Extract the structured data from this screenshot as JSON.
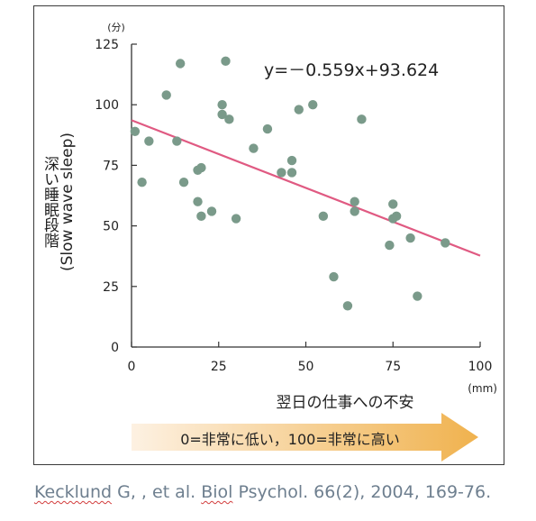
{
  "chart_data": {
    "type": "scatter",
    "title": "",
    "xlabel": "翌日の仕事への不安",
    "xunit": "(mm)",
    "ylabel_jp": "深い睡眠段階",
    "ylabel_en": "(Slow wave sleep)",
    "yunit": "(分)",
    "xlim": [
      0,
      100
    ],
    "ylim": [
      0,
      125
    ],
    "xticks": [
      "0",
      "25",
      "50",
      "75",
      "100"
    ],
    "yticks": [
      "0",
      "25",
      "50",
      "75",
      "100",
      "125"
    ],
    "grid": false,
    "equation": "y=－0.559x+93.624",
    "regression": {
      "slope": -0.559,
      "intercept": 93.624,
      "x_range": [
        0,
        100
      ]
    },
    "points": [
      [
        1,
        89
      ],
      [
        3,
        68
      ],
      [
        5,
        85
      ],
      [
        10,
        104
      ],
      [
        13,
        85
      ],
      [
        14,
        117
      ],
      [
        15,
        68
      ],
      [
        19,
        60
      ],
      [
        19,
        73
      ],
      [
        20,
        74
      ],
      [
        20,
        54
      ],
      [
        23,
        56
      ],
      [
        26,
        100
      ],
      [
        26,
        96
      ],
      [
        27,
        118
      ],
      [
        28,
        94
      ],
      [
        30,
        53
      ],
      [
        35,
        82
      ],
      [
        39,
        90
      ],
      [
        43,
        72
      ],
      [
        46,
        77
      ],
      [
        46,
        72
      ],
      [
        48,
        98
      ],
      [
        52,
        100
      ],
      [
        55,
        54
      ],
      [
        58,
        29
      ],
      [
        62,
        17
      ],
      [
        64,
        60
      ],
      [
        64,
        56
      ],
      [
        66,
        94
      ],
      [
        74,
        42
      ],
      [
        75,
        59
      ],
      [
        75,
        53
      ],
      [
        76,
        54
      ],
      [
        80,
        45
      ],
      [
        82,
        21
      ],
      [
        90,
        43
      ]
    ],
    "colors": {
      "points": "#7a9a8a",
      "line": "#e05a82",
      "axis": "#333333"
    }
  },
  "arrow_caption": "0=非常に低い，100=非常に高い",
  "arrow_colors": {
    "start": "#fdf1e2",
    "end": "#f0b24e"
  },
  "citation": {
    "author": "Kecklund",
    "middle": " G, , et al. ",
    "journal": "Biol",
    "rest": " Psychol. 66(2), 2004, 169-76."
  }
}
